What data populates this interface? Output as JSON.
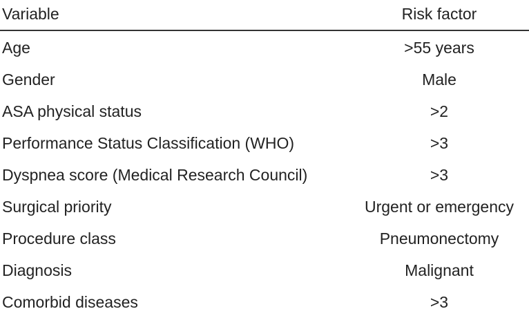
{
  "table": {
    "header": {
      "variable": "Variable",
      "risk_factor": "Risk factor"
    },
    "rows": [
      {
        "variable": "Age",
        "risk_factor": ">55 years"
      },
      {
        "variable": "Gender",
        "risk_factor": "Male"
      },
      {
        "variable": "ASA physical status",
        "risk_factor": ">2"
      },
      {
        "variable": "Performance Status Classification (WHO)",
        "risk_factor": ">3"
      },
      {
        "variable": "Dyspnea score (Medical Research Council)",
        "risk_factor": ">3"
      },
      {
        "variable": "Surgical priority",
        "risk_factor": "Urgent or emergency"
      },
      {
        "variable": "Procedure class",
        "risk_factor": "Pneumonectomy"
      },
      {
        "variable": "Diagnosis",
        "risk_factor": "Malignant"
      },
      {
        "variable": "Comorbid diseases",
        "risk_factor": ">3"
      }
    ]
  }
}
